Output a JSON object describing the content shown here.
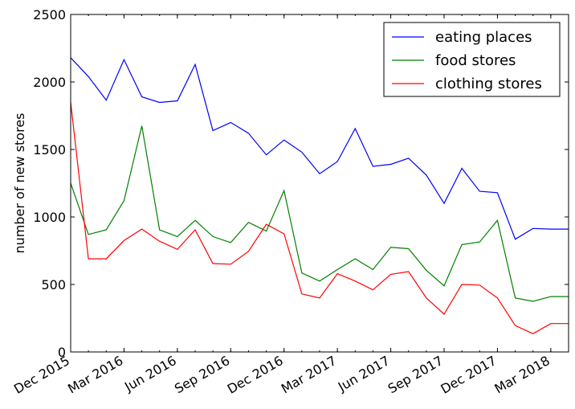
{
  "chart_data": {
    "type": "line",
    "ylabel": "number of new stores",
    "xlabel": "",
    "ylim": [
      0,
      2500
    ],
    "yticks": [
      0,
      500,
      1000,
      1500,
      2000,
      2500
    ],
    "xlim": [
      "2015-12",
      "2018-04"
    ],
    "xticks": [
      {
        "date": "2015-12",
        "label": "Dec 2015"
      },
      {
        "date": "2016-03",
        "label": "Mar 2016"
      },
      {
        "date": "2016-06",
        "label": "Jun 2016"
      },
      {
        "date": "2016-09",
        "label": "Sep 2016"
      },
      {
        "date": "2016-12",
        "label": "Dec 2016"
      },
      {
        "date": "2017-03",
        "label": "Mar 2017"
      },
      {
        "date": "2017-06",
        "label": "Jun 2017"
      },
      {
        "date": "2017-09",
        "label": "Sep 2017"
      },
      {
        "date": "2017-12",
        "label": "Dec 2017"
      },
      {
        "date": "2018-03",
        "label": "Mar 2018"
      }
    ],
    "x": [
      "2015-12",
      "2016-01",
      "2016-02",
      "2016-03",
      "2016-04",
      "2016-05",
      "2016-06",
      "2016-07",
      "2016-08",
      "2016-09",
      "2016-10",
      "2016-11",
      "2016-12",
      "2017-01",
      "2017-02",
      "2017-03",
      "2017-04",
      "2017-05",
      "2017-06",
      "2017-07",
      "2017-08",
      "2017-09",
      "2017-10",
      "2017-11",
      "2017-12",
      "2018-01",
      "2018-02",
      "2018-03",
      "2018-04"
    ],
    "series": [
      {
        "name": "eating places",
        "color": "#0000ff",
        "values": [
          2180,
          2040,
          1865,
          2165,
          1890,
          1848,
          1860,
          2130,
          1640,
          1700,
          1620,
          1460,
          1570,
          1480,
          1320,
          1410,
          1655,
          1375,
          1390,
          1435,
          1310,
          1100,
          1360,
          1190,
          1180,
          835,
          915,
          910,
          910
        ]
      },
      {
        "name": "food stores",
        "color": "#008000",
        "values": [
          1250,
          870,
          905,
          1120,
          1675,
          905,
          855,
          975,
          855,
          810,
          960,
          895,
          1195,
          585,
          525,
          610,
          690,
          610,
          775,
          765,
          605,
          490,
          795,
          815,
          975,
          400,
          375,
          410,
          410
        ]
      },
      {
        "name": "clothing stores",
        "color": "#ff0000",
        "values": [
          1850,
          690,
          690,
          825,
          910,
          820,
          760,
          905,
          655,
          650,
          745,
          945,
          875,
          430,
          400,
          580,
          525,
          460,
          575,
          595,
          400,
          280,
          500,
          495,
          400,
          195,
          135,
          210,
          210
        ]
      }
    ],
    "legend_position": "top-right",
    "grid": false
  }
}
